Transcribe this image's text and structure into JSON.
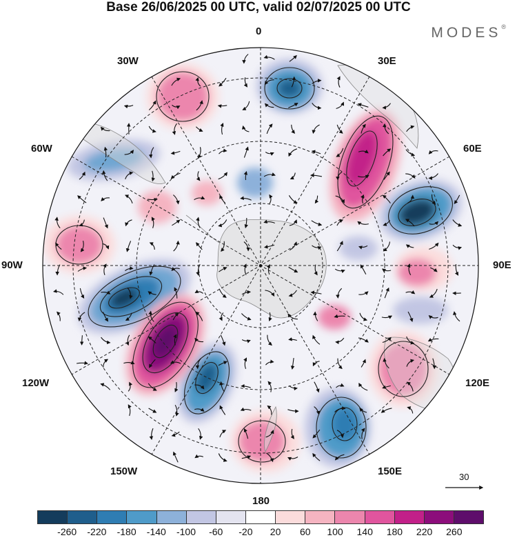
{
  "header": {
    "title": "Base 26/06/2025 00 UTC, valid 02/07/2025 00 UTC",
    "brand": "MODES",
    "brand_mark": "®"
  },
  "map": {
    "projection": "south polar stereographic",
    "longitude_labels": {
      "top": "0",
      "top_left": "30W",
      "top_right": "30E",
      "upper_left": "60W",
      "upper_right": "60E",
      "left": "90W",
      "right": "90E",
      "lower_left": "120W",
      "lower_right": "120E",
      "bottom_left": "150W",
      "bottom_right": "150E",
      "bottom": "180"
    },
    "reference_vector_label": "30"
  },
  "colors": {
    "negative_strong": "#1a4a70",
    "negative": "#3a8fc0",
    "negative_light": "#c7c9e6",
    "neutral": "#ffffff",
    "positive_light": "#f8c8cc",
    "positive": "#e5609f",
    "positive_strong": "#5e0d6b",
    "land": "#dcdcdc"
  },
  "colorbar": {
    "colors": [
      "#143c5c",
      "#1f5e8c",
      "#2f7db3",
      "#4f9bc9",
      "#8db1da",
      "#c2c6e3",
      "#e4e4f0",
      "#ffffff",
      "#fbdcdc",
      "#f5b4c1",
      "#ec86ad",
      "#e0559e",
      "#c22089",
      "#8c0d7b",
      "#5e0d6b"
    ],
    "tick_labels": [
      "-260",
      "-220",
      "-180",
      "-140",
      "-100",
      "-60",
      "-20",
      "20",
      "60",
      "100",
      "140",
      "180",
      "220",
      "260"
    ]
  }
}
